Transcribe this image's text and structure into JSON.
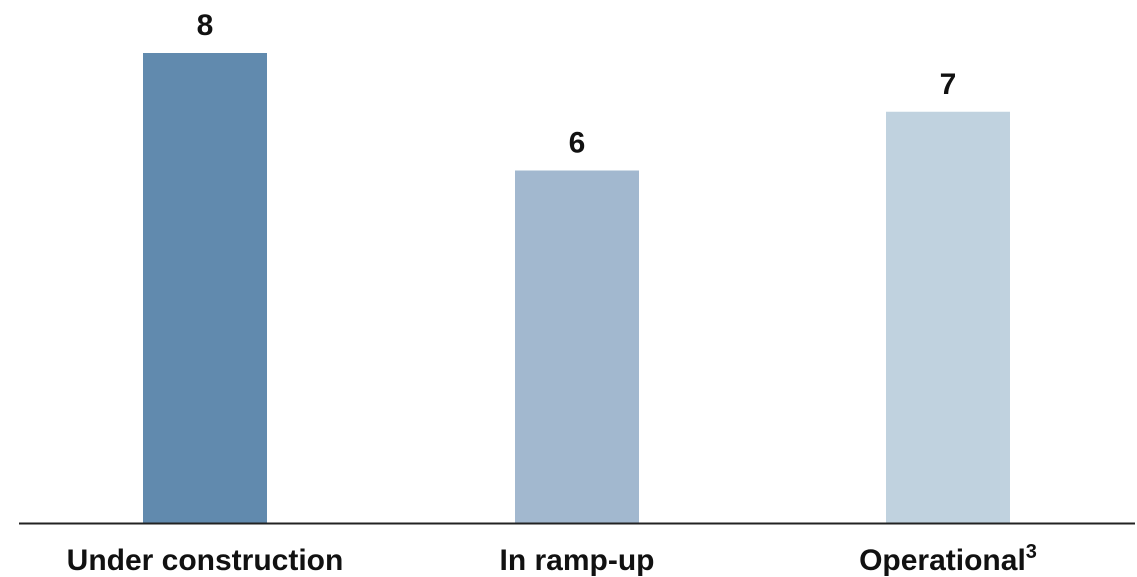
{
  "chart_data": {
    "type": "bar",
    "categories": [
      "Under construction",
      "In ramp-up",
      "Operational"
    ],
    "category_superscripts": [
      "",
      "",
      "3"
    ],
    "values": [
      8,
      6,
      7
    ],
    "bar_colors": [
      "#618aae",
      "#a2b8cf",
      "#c0d2df"
    ],
    "title": "",
    "xlabel": "",
    "ylabel": "",
    "ylim": [
      0,
      8
    ],
    "grid": false,
    "legend": "none"
  }
}
